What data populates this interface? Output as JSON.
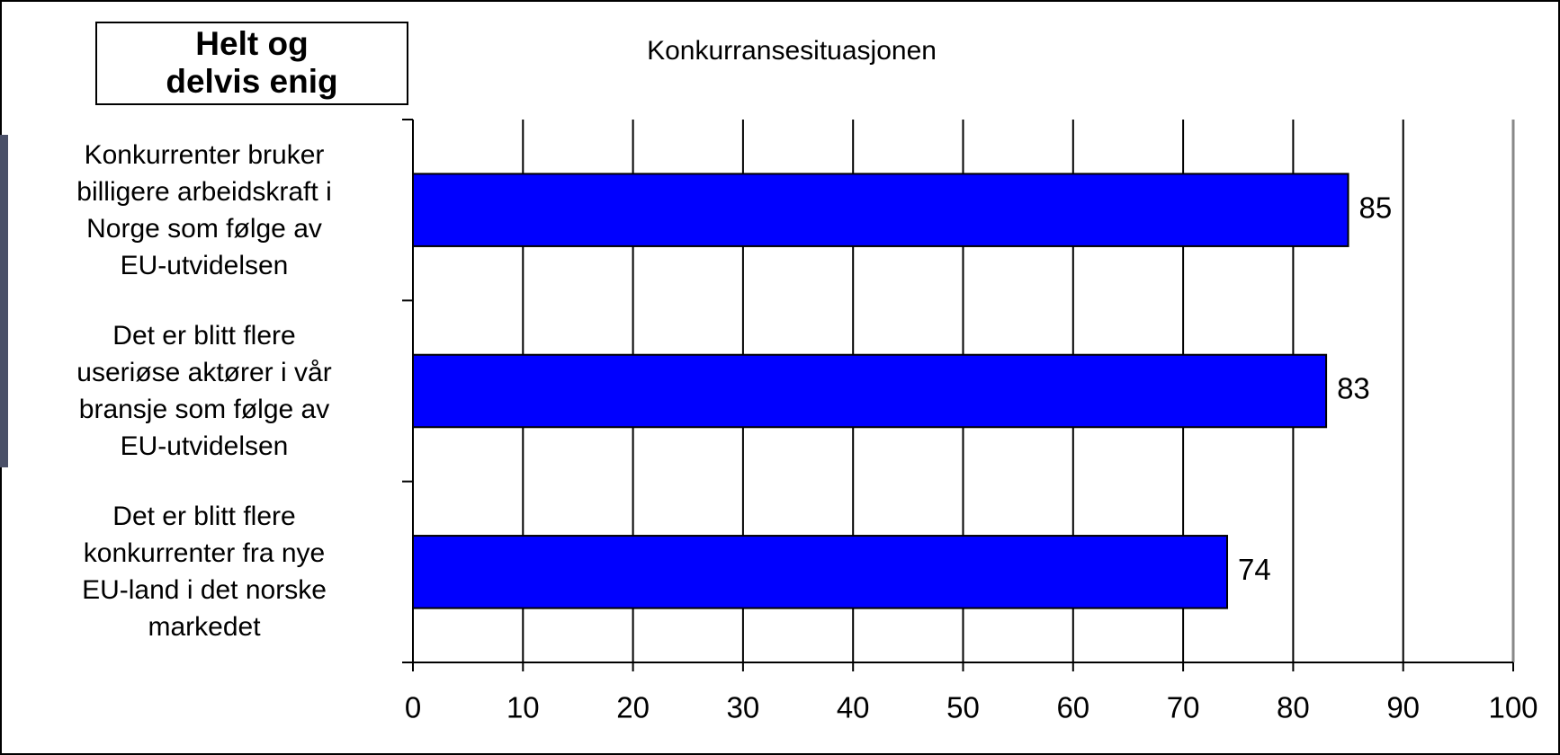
{
  "chart_data": {
    "type": "bar",
    "orientation": "horizontal",
    "title": "Konkurransesituasjonen",
    "legend_box": "Helt og\ndelvis enig",
    "categories": [
      "Konkurrenter bruker\nbilligere arbeidskraft i\nNorge som følge av\nEU-utvidelsen",
      "Det er blitt flere\nuseriøse aktører i vår\nbransje som følge av\nEU-utvidelsen",
      "Det er blitt flere\nkonkurrenter fra nye\nEU-land i det norske\nmarkedet"
    ],
    "values": [
      85,
      83,
      74
    ],
    "color": "#0000ff",
    "xlim": [
      0,
      100
    ],
    "xticks": [
      0,
      10,
      20,
      30,
      40,
      50,
      60,
      70,
      80,
      90,
      100
    ],
    "grid": true
  }
}
